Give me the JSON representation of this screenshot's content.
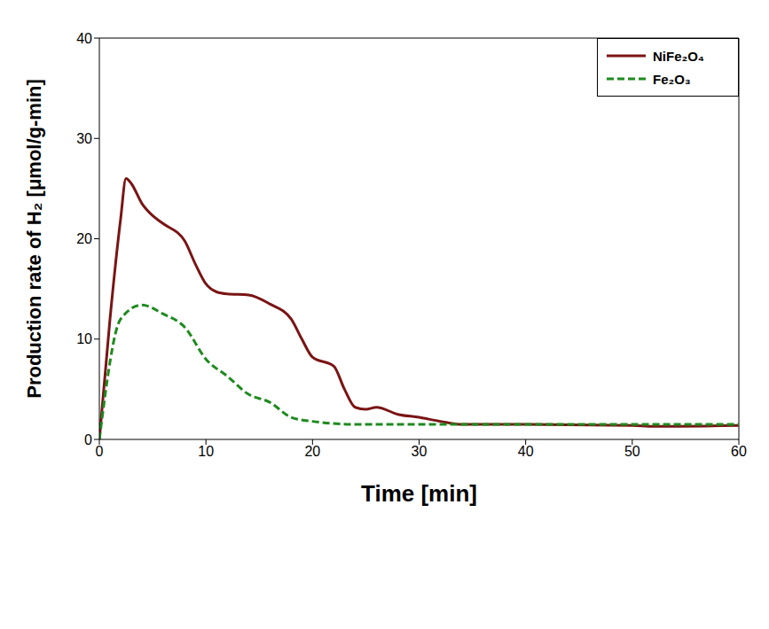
{
  "chart_data": {
    "type": "line",
    "x_label": "Time [min]",
    "y_label": "Production rate of H₂ [μmol/g-min]",
    "xlim": [
      0,
      60
    ],
    "xticks": [
      0,
      10,
      20,
      30,
      40,
      50,
      60
    ],
    "ylim": [
      0,
      40
    ],
    "yticks": [
      0,
      10,
      20,
      30,
      40
    ],
    "grid": false,
    "legend": "upper right",
    "series": [
      {
        "name": "NiFe₂O₄",
        "color": "#7a1414",
        "line_style": "solid",
        "x": [
          0,
          1,
          2,
          2.5,
          3,
          4,
          5,
          6,
          8,
          9,
          10,
          11,
          12,
          14,
          16,
          18,
          19,
          20,
          22,
          23,
          24,
          25,
          26,
          28,
          30,
          32,
          34,
          40,
          50,
          52,
          60
        ],
        "values": [
          0,
          12,
          22,
          26,
          25.5,
          23.5,
          22.3,
          21.5,
          19.8,
          17.5,
          15.5,
          14.7,
          14.5,
          14.4,
          13.5,
          12,
          10,
          8.2,
          7.3,
          5,
          3.2,
          3,
          3.2,
          2.5,
          2.2,
          1.8,
          1.5,
          1.5,
          1.4,
          1.3,
          1.4
        ]
      },
      {
        "name": "Fe₂O₃",
        "color": "#1e8a1e",
        "line_style": "dashed",
        "x": [
          0,
          2,
          4,
          6,
          8,
          10,
          12,
          14,
          16,
          18,
          20,
          24,
          30,
          40,
          50,
          60
        ],
        "values": [
          0,
          12,
          13.4,
          12.5,
          11.2,
          8,
          6.3,
          4.5,
          3.7,
          2.2,
          1.8,
          1.5,
          1.5,
          1.5,
          1.5,
          1.5
        ]
      }
    ]
  }
}
